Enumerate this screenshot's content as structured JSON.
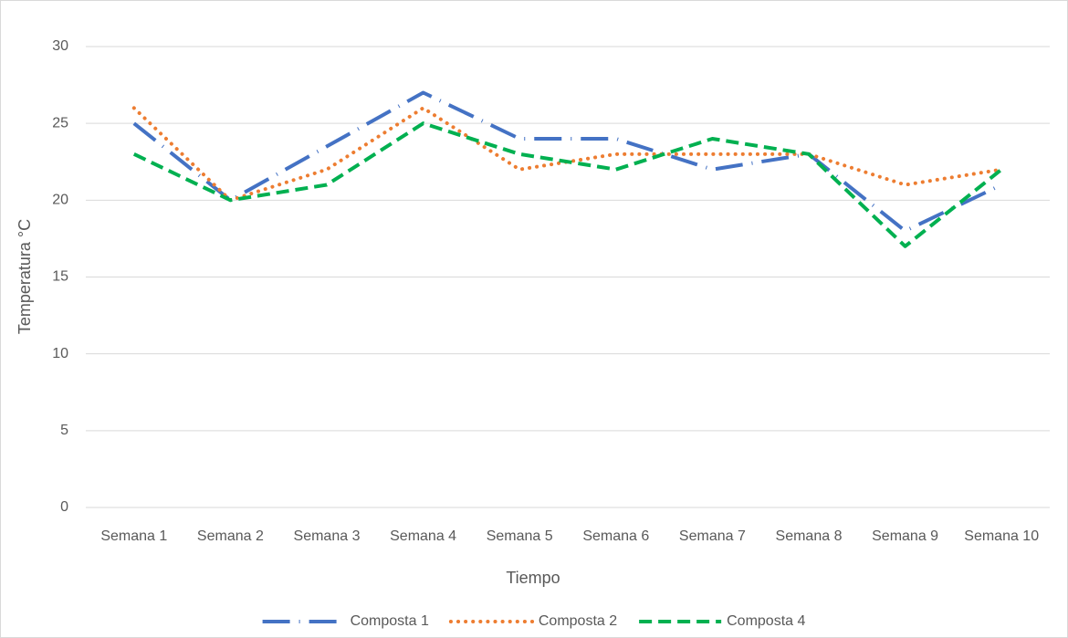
{
  "chart_data": {
    "type": "line",
    "y_label": "Temperatura °C",
    "x_label": "Tiempo",
    "categories": [
      "Semana 1",
      "Semana 2",
      "Semana 3",
      "Semana 4",
      "Semana 5",
      "Semana 6",
      "Semana 7",
      "Semana 8",
      "Semana 9",
      "Semana 10"
    ],
    "series": [
      {
        "name": "Composta 1",
        "color": "#4472c4",
        "dash": "long-dash-dot",
        "values": [
          25,
          20,
          23.5,
          27,
          24,
          24,
          22,
          23,
          18,
          21
        ]
      },
      {
        "name": "Composta 2",
        "color": "#ed7d31",
        "dash": "dot",
        "values": [
          26,
          20,
          22,
          26,
          22,
          23,
          23,
          23,
          21,
          22
        ]
      },
      {
        "name": "Composta 4",
        "color": "#00b050",
        "dash": "dash",
        "values": [
          23,
          20,
          21,
          25,
          23,
          22,
          24,
          23,
          17,
          22
        ]
      }
    ],
    "ylim": [
      0,
      30
    ],
    "yticks": [
      0,
      5,
      10,
      15,
      20,
      25,
      30
    ],
    "grid": true,
    "legend": "bottom"
  }
}
